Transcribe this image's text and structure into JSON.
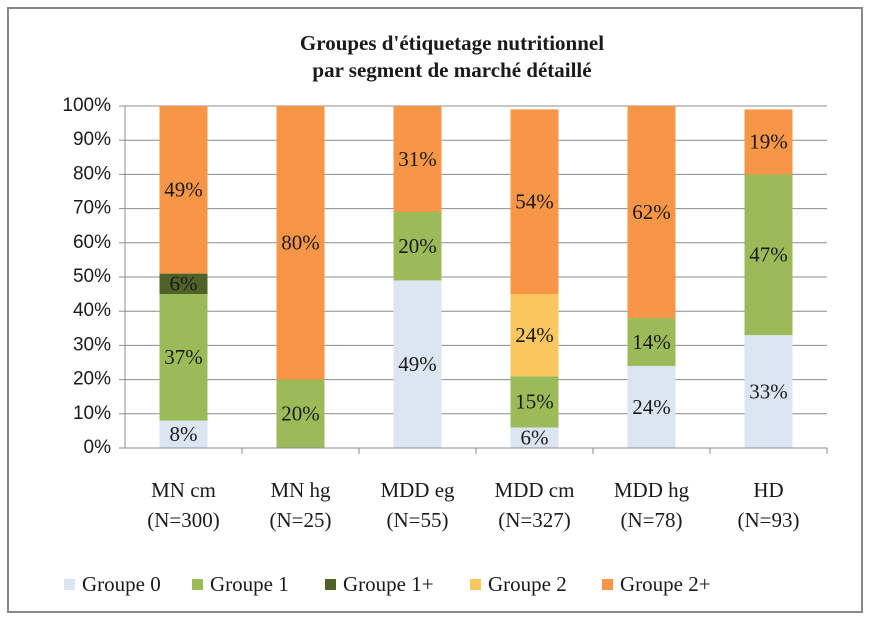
{
  "chart_data": {
    "type": "stacked-bar",
    "title": [
      "Groupes d'étiquetage nutritionnel",
      "par segment de marché détaillé"
    ],
    "categories": [
      [
        "MN cm",
        "(N=300)"
      ],
      [
        "MN hg",
        "(N=25)"
      ],
      [
        "MDD eg",
        "(N=55)"
      ],
      [
        "MDD cm",
        "(N=327)"
      ],
      [
        "MDD hg",
        "(N=78)"
      ],
      [
        "HD",
        "(N=93)"
      ]
    ],
    "series": [
      {
        "name": "Groupe 0",
        "color": "#dce6f2",
        "values": [
          8,
          null,
          49,
          6,
          24,
          33
        ],
        "value_labels": [
          "8%",
          null,
          "49%",
          "6%",
          "24%",
          "33%"
        ]
      },
      {
        "name": "Groupe 1",
        "color": "#9bbb59",
        "values": [
          37,
          20,
          20,
          15,
          14,
          47
        ],
        "value_labels": [
          "37%",
          "20%",
          "20%",
          "15%",
          "14%",
          "47%"
        ]
      },
      {
        "name": "Groupe 1+",
        "color": "#4f6228",
        "values": [
          6,
          null,
          null,
          null,
          null,
          null
        ],
        "value_labels": [
          "6%",
          null,
          null,
          null,
          null,
          null
        ]
      },
      {
        "name": "Groupe 2",
        "color": "#fac75e",
        "values": [
          null,
          null,
          null,
          24,
          null,
          null
        ],
        "value_labels": [
          null,
          null,
          null,
          "24%",
          null,
          null
        ]
      },
      {
        "name": "Groupe 2+",
        "color": "#f79646",
        "values": [
          49,
          80,
          31,
          54,
          62,
          19
        ],
        "value_labels": [
          "49%",
          "80%",
          "31%",
          "54%",
          "62%",
          "19%"
        ]
      }
    ],
    "ylim": [
      0,
      100
    ],
    "yticks": [
      {
        "value": 0,
        "label": "0%"
      },
      {
        "value": 10,
        "label": "10%"
      },
      {
        "value": 20,
        "label": "20%"
      },
      {
        "value": 30,
        "label": "30%"
      },
      {
        "value": 40,
        "label": "40%"
      },
      {
        "value": 50,
        "label": "50%"
      },
      {
        "value": 60,
        "label": "60%"
      },
      {
        "value": 70,
        "label": "70%"
      },
      {
        "value": 80,
        "label": "80%"
      },
      {
        "value": 90,
        "label": "90%"
      },
      {
        "value": 100,
        "label": "100%"
      }
    ],
    "grid": true
  }
}
